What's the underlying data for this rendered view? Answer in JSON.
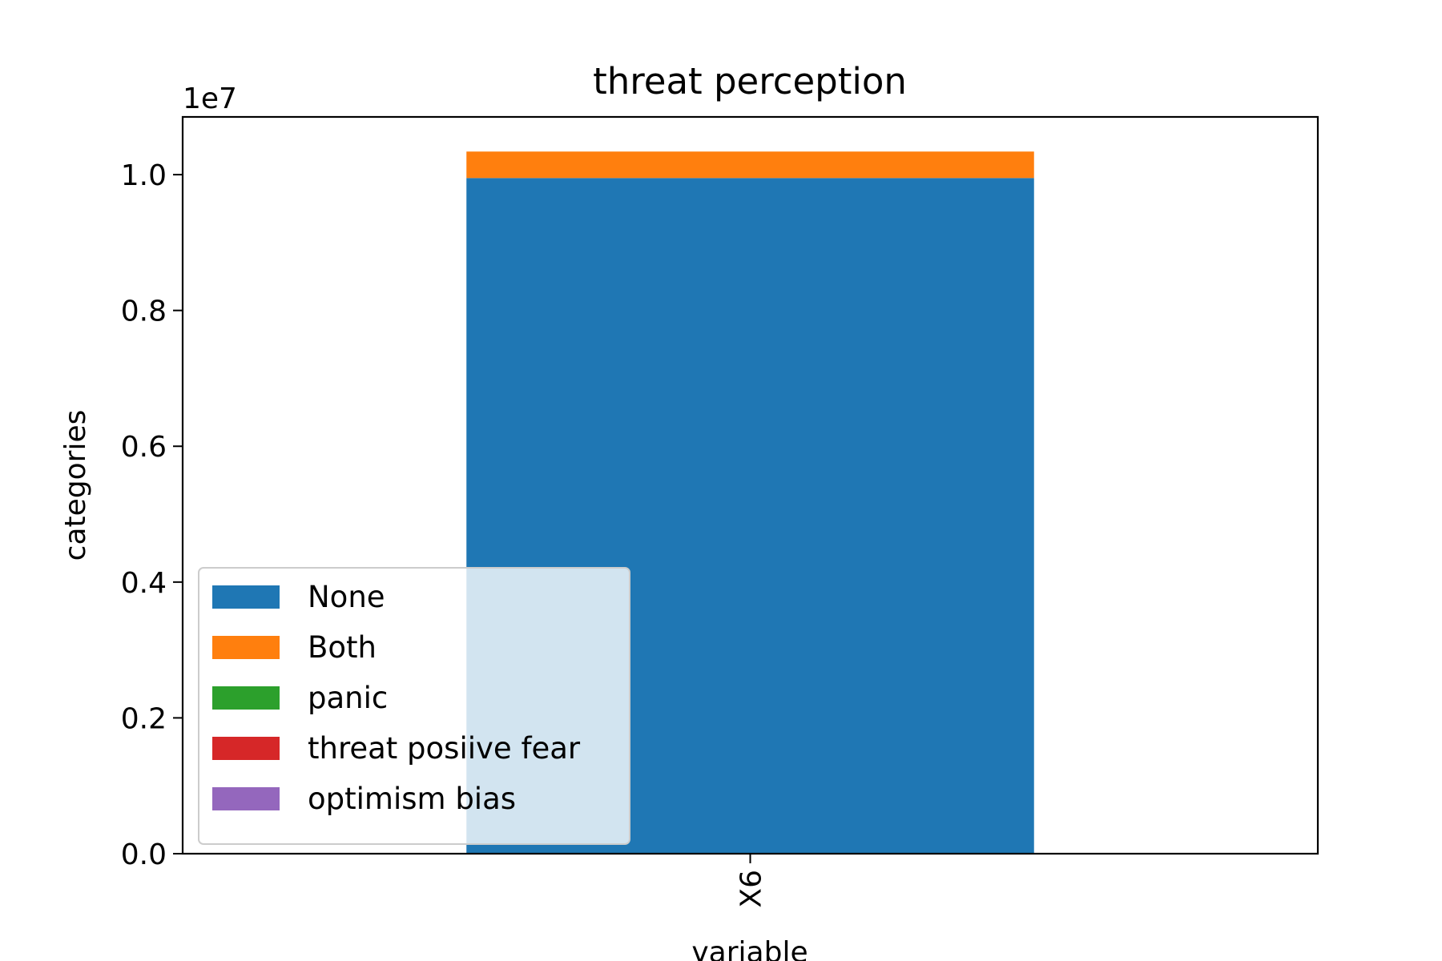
{
  "chart_data": {
    "type": "bar",
    "stacked": true,
    "title": "threat perception",
    "xlabel": "variable",
    "ylabel": "categories",
    "offset_label": "1e7",
    "categories": [
      "X6"
    ],
    "ylim": [
      0,
      10850000
    ],
    "yticks": [
      {
        "value": 0,
        "label": "0.0"
      },
      {
        "value": 2000000,
        "label": "0.2"
      },
      {
        "value": 4000000,
        "label": "0.4"
      },
      {
        "value": 6000000,
        "label": "0.6"
      },
      {
        "value": 8000000,
        "label": "0.8"
      },
      {
        "value": 10000000,
        "label": "1.0"
      }
    ],
    "series": [
      {
        "name": "None",
        "color": "#1f77b4",
        "values": [
          9950000
        ]
      },
      {
        "name": "Both",
        "color": "#ff7f0e",
        "values": [
          390000
        ]
      },
      {
        "name": "panic",
        "color": "#2ca02c",
        "values": [
          0
        ]
      },
      {
        "name": "threat posiive fear",
        "color": "#d62728",
        "values": [
          0
        ]
      },
      {
        "name": "optimism bias",
        "color": "#9467bd",
        "values": [
          0
        ]
      }
    ],
    "grid": false,
    "legend_position": "lower-left"
  }
}
